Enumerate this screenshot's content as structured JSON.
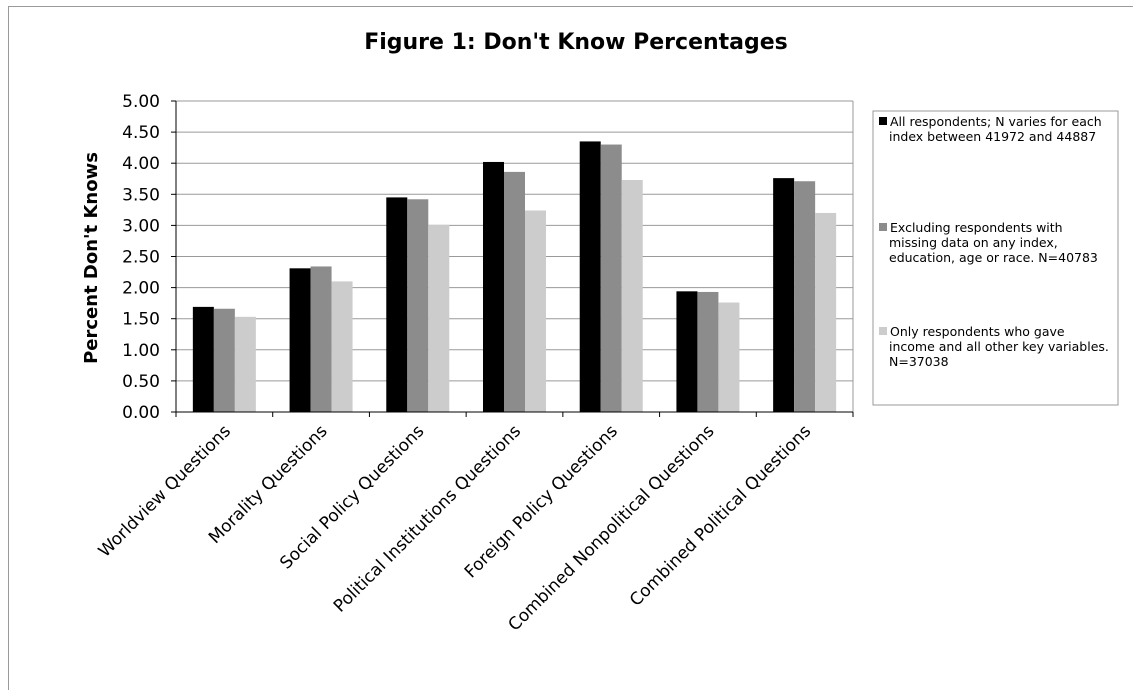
{
  "chart_data": {
    "type": "bar",
    "title": "Figure 1: Don't Know Percentages",
    "ylabel": "Percent Don't Knows",
    "xlabel": "",
    "ylim": [
      0,
      5
    ],
    "yticks": [
      "0.00",
      "0.50",
      "1.00",
      "1.50",
      "2.00",
      "2.50",
      "3.00",
      "3.50",
      "4.00",
      "4.50",
      "5.00"
    ],
    "grid": true,
    "legend_position": "right",
    "categories": [
      "Worldview Questions",
      "Morality Questions",
      "Social Policy Questions",
      "Political Institutions Questions",
      "Foreign Policy Questions",
      "Combined Nonpolitical Questions",
      "Combined Political Questions"
    ],
    "series": [
      {
        "name": "All respondents; N varies for each index between 41972 and 44887",
        "legend_lines": [
          "All respondents; N varies for each",
          "index between 41972 and 44887"
        ],
        "color": "#000000",
        "values": [
          1.69,
          2.31,
          3.45,
          4.02,
          4.35,
          1.94,
          3.76
        ]
      },
      {
        "name": "Excluding respondents with missing data on any index, education, age or race. N=40783",
        "legend_lines": [
          "Excluding respondents with",
          "missing data on any index,",
          "education, age or race.  N=40783"
        ],
        "color": "#8c8c8c",
        "values": [
          1.66,
          2.34,
          3.42,
          3.86,
          4.3,
          1.93,
          3.71
        ]
      },
      {
        "name": "Only respondents who gave income and all other key variables. N=37038",
        "legend_lines": [
          "Only respondents who gave",
          "income and all other key variables.",
          "N=37038"
        ],
        "color": "#cccccc",
        "values": [
          1.53,
          2.1,
          3.01,
          3.24,
          3.73,
          1.76,
          3.2
        ]
      }
    ]
  }
}
